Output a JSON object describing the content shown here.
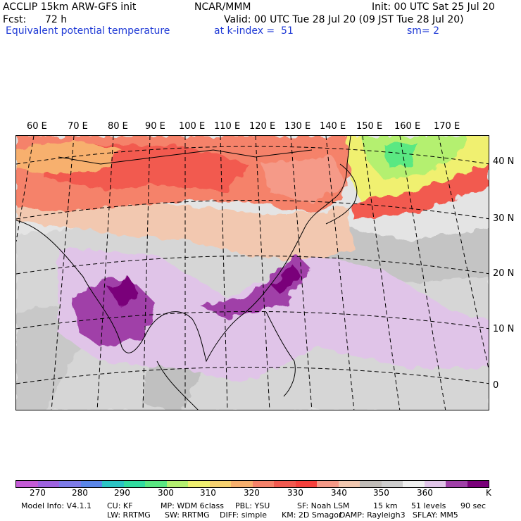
{
  "header": {
    "model": "ACCLIP 15km ARW-GFS init",
    "org": "NCAR/MMM",
    "init": "Init: 00 UTC Sat 25 Jul 20",
    "fcst_label": "Fcst:",
    "fcst_value": "72 h",
    "valid": "Valid: 00 UTC Tue 28 Jul 20 (09 JST Tue 28 Jul 20)",
    "field": "Equivalent potential temperature",
    "level": "at k-index =  51",
    "smoothing": "sm= 2"
  },
  "map": {
    "lon_labels": [
      "60 E",
      "70 E",
      "80 E",
      "90 E",
      "100 E",
      "110 E",
      "120 E",
      "130 E",
      "140 E",
      "150 E",
      "160 E",
      "170 E"
    ],
    "lat_labels": [
      "40 N",
      "30 N",
      "20 N",
      "10 N",
      "0"
    ],
    "units": "K"
  },
  "colorbar": {
    "colors": [
      "#c45bd6",
      "#9e62e0",
      "#7d7be8",
      "#5a86e8",
      "#2bc4c4",
      "#32dca0",
      "#5ae882",
      "#b4f070",
      "#f0f070",
      "#f7d270",
      "#f7b06e",
      "#f5826a",
      "#f25a50",
      "#f6403c",
      "#f59a88",
      "#f2c8b0",
      "#c0bcb8",
      "#cdcdcd",
      "#efefef",
      "#e0c4e8",
      "#a040a8",
      "#7a007a"
    ],
    "ticks": [
      "270",
      "280",
      "290",
      "300",
      "310",
      "320",
      "330",
      "340",
      "350",
      "360"
    ],
    "unit": "K"
  },
  "footer": {
    "line1": [
      "Model Info: V4.1.1",
      "CU: KF",
      "MP: WDM 6class",
      "PBL: YSU",
      "SF: Noah LSM",
      "15 km",
      "51 levels",
      "90 sec"
    ],
    "line2": [
      "LW: RRTMG",
      "SW: RRTMG",
      "DIFF: simple",
      "KM: 2D Smagor",
      "DAMP: Rayleigh3",
      "SFLAY: MM5"
    ]
  }
}
